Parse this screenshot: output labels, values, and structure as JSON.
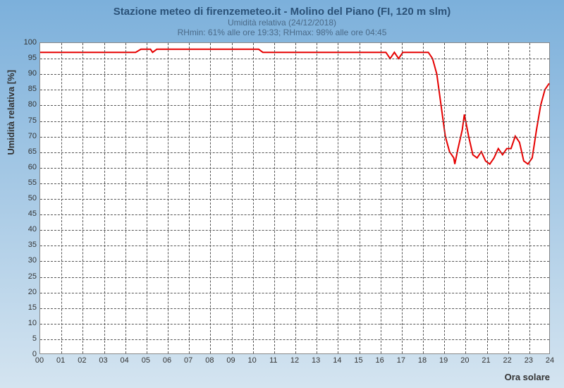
{
  "title": "Stazione meteo di firenzemeteo.it - Molino del Piano (FI, 120 m slm)",
  "subtitle": "Umidità relativa (24/12/2018)",
  "subtitle2": "RHmin: 61% alle ore 19:33; RHmax: 98% alle ore 04:45",
  "ylabel": "Umidità relativa [%]",
  "xlabel": "Ora solare",
  "chart": {
    "type": "line",
    "background_color": "#ffffff",
    "grid_color": "#555555",
    "grid_dash": "3,3",
    "line_color": "#e60000",
    "line_width": 2,
    "xlim": [
      0,
      24
    ],
    "ylim": [
      0,
      100
    ],
    "ytick_step": 5,
    "xtick_step": 1,
    "xtick_labels": [
      "00",
      "01",
      "02",
      "03",
      "04",
      "05",
      "06",
      "07",
      "08",
      "09",
      "10",
      "11",
      "12",
      "13",
      "14",
      "15",
      "16",
      "17",
      "18",
      "19",
      "20",
      "21",
      "22",
      "23",
      "24"
    ],
    "series": [
      {
        "x": 0.0,
        "y": 97
      },
      {
        "x": 0.5,
        "y": 97
      },
      {
        "x": 1.0,
        "y": 97
      },
      {
        "x": 1.5,
        "y": 97
      },
      {
        "x": 2.0,
        "y": 97
      },
      {
        "x": 2.5,
        "y": 97
      },
      {
        "x": 3.0,
        "y": 97
      },
      {
        "x": 3.5,
        "y": 97
      },
      {
        "x": 4.0,
        "y": 97
      },
      {
        "x": 4.5,
        "y": 97
      },
      {
        "x": 4.75,
        "y": 98
      },
      {
        "x": 5.0,
        "y": 98
      },
      {
        "x": 5.2,
        "y": 98
      },
      {
        "x": 5.3,
        "y": 97
      },
      {
        "x": 5.5,
        "y": 98
      },
      {
        "x": 6.0,
        "y": 98
      },
      {
        "x": 6.5,
        "y": 98
      },
      {
        "x": 7.0,
        "y": 98
      },
      {
        "x": 7.5,
        "y": 98
      },
      {
        "x": 8.0,
        "y": 98
      },
      {
        "x": 8.5,
        "y": 98
      },
      {
        "x": 9.0,
        "y": 98
      },
      {
        "x": 9.5,
        "y": 98
      },
      {
        "x": 10.0,
        "y": 98
      },
      {
        "x": 10.3,
        "y": 98
      },
      {
        "x": 10.5,
        "y": 97
      },
      {
        "x": 11.0,
        "y": 97
      },
      {
        "x": 11.5,
        "y": 97
      },
      {
        "x": 12.0,
        "y": 97
      },
      {
        "x": 12.5,
        "y": 97
      },
      {
        "x": 13.0,
        "y": 97
      },
      {
        "x": 13.5,
        "y": 97
      },
      {
        "x": 14.0,
        "y": 97
      },
      {
        "x": 14.5,
        "y": 97
      },
      {
        "x": 15.0,
        "y": 97
      },
      {
        "x": 15.5,
        "y": 97
      },
      {
        "x": 16.0,
        "y": 97
      },
      {
        "x": 16.3,
        "y": 97
      },
      {
        "x": 16.5,
        "y": 95
      },
      {
        "x": 16.7,
        "y": 97
      },
      {
        "x": 16.9,
        "y": 95
      },
      {
        "x": 17.1,
        "y": 97
      },
      {
        "x": 17.5,
        "y": 97
      },
      {
        "x": 18.0,
        "y": 97
      },
      {
        "x": 18.3,
        "y": 97
      },
      {
        "x": 18.5,
        "y": 95
      },
      {
        "x": 18.7,
        "y": 90
      },
      {
        "x": 18.9,
        "y": 80
      },
      {
        "x": 19.1,
        "y": 70
      },
      {
        "x": 19.3,
        "y": 65
      },
      {
        "x": 19.5,
        "y": 63
      },
      {
        "x": 19.55,
        "y": 61
      },
      {
        "x": 19.7,
        "y": 66
      },
      {
        "x": 19.9,
        "y": 72
      },
      {
        "x": 20.0,
        "y": 77
      },
      {
        "x": 20.2,
        "y": 70
      },
      {
        "x": 20.4,
        "y": 64
      },
      {
        "x": 20.6,
        "y": 63
      },
      {
        "x": 20.8,
        "y": 65
      },
      {
        "x": 21.0,
        "y": 62
      },
      {
        "x": 21.2,
        "y": 61
      },
      {
        "x": 21.4,
        "y": 63
      },
      {
        "x": 21.6,
        "y": 66
      },
      {
        "x": 21.8,
        "y": 64
      },
      {
        "x": 22.0,
        "y": 66
      },
      {
        "x": 22.2,
        "y": 66
      },
      {
        "x": 22.4,
        "y": 70
      },
      {
        "x": 22.6,
        "y": 68
      },
      {
        "x": 22.8,
        "y": 62
      },
      {
        "x": 23.0,
        "y": 61
      },
      {
        "x": 23.2,
        "y": 63
      },
      {
        "x": 23.4,
        "y": 72
      },
      {
        "x": 23.6,
        "y": 80
      },
      {
        "x": 23.8,
        "y": 85
      },
      {
        "x": 24.0,
        "y": 87
      }
    ]
  }
}
